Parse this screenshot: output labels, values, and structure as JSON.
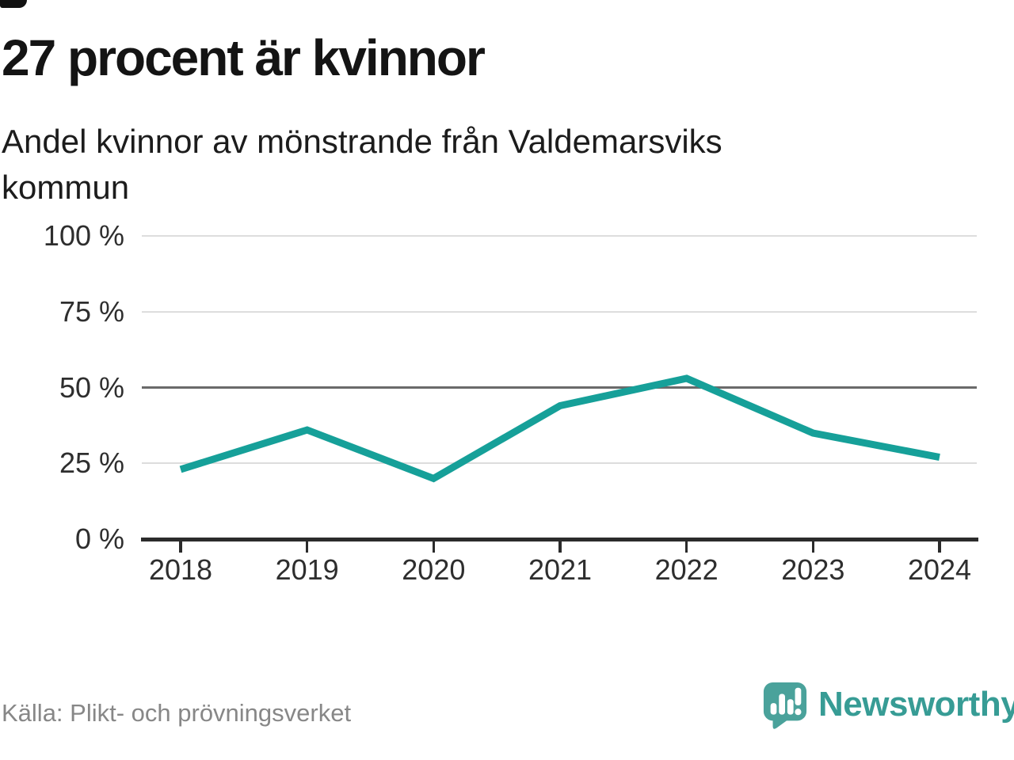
{
  "header": {
    "title": "27 procent är kvinnor",
    "subtitle": "Andel kvinnor av mönstrande från Valdemarsviks kommun"
  },
  "footer": {
    "source_label": "Källa: Plikt- och prövningsverket",
    "brand_name": "Newsworthy"
  },
  "colors": {
    "line": "#16A099",
    "grid_light": "#DDDDDD",
    "grid_emphasis": "#6A6A6A",
    "axis": "#2B2B2B",
    "tick_text": "#2E2E2E",
    "muted_text": "#878787",
    "logo_bubble": "#4AA29B",
    "wordmark": "#379C95"
  },
  "chart_data": {
    "type": "line",
    "title": "27 procent är kvinnor",
    "subtitle": "Andel kvinnor av mönstrande från Valdemarsviks kommun",
    "source": "Källa: Plikt- och prövningsverket",
    "x": [
      "2018",
      "2019",
      "2020",
      "2021",
      "2022",
      "2023",
      "2024"
    ],
    "categories": [
      "2018",
      "2019",
      "2020",
      "2021",
      "2022",
      "2023",
      "2024"
    ],
    "series": [
      {
        "name": "Andel kvinnor av mönstrande",
        "values": [
          23,
          36,
          20,
          44,
          53,
          35,
          27
        ]
      }
    ],
    "xlabel": "",
    "ylabel": "",
    "ylim": [
      0,
      100
    ],
    "yticks": [
      0,
      25,
      50,
      75,
      100
    ],
    "ytick_suffix": " %",
    "grid": "horizontal",
    "emphasized_gridline": 50,
    "legend": "none"
  }
}
